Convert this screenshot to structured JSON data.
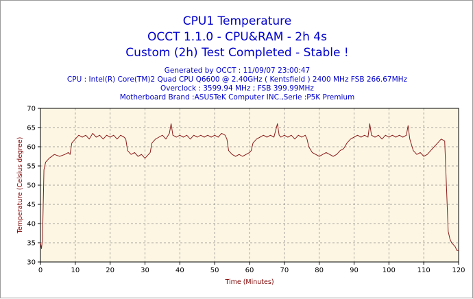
{
  "title_lines": [
    "CPU1 Temperature",
    "OCCT 1.1.0 - CPU&RAM - 2h 4s",
    "Custom (2h) Test Completed - Stable !"
  ],
  "info_lines": [
    "Generated by OCCT : 11/09/07 23:00:47",
    "CPU : Intel(R) Core(TM)2 Quad CPU    Q6600  @ 2.40GHz ( Kentsfield ) 2400 MHz FSB 266.67MHz",
    "Overclock :  3599.94 MHz ; FSB 399.99MHz",
    "Motherboard Brand :ASUSTeK Computer INC.,Serie :P5K Premium"
  ],
  "colors": {
    "title": "#0000cc",
    "axis_label": "#800000",
    "line": "#8b1a1a",
    "plot_bg": "#fdf6e3",
    "grid": "#8a8a8a"
  },
  "chart_data": {
    "type": "line",
    "title": "CPU1 Temperature",
    "xlabel": "Time (Minutes)",
    "ylabel": "Temperature (Celsius degree)",
    "xlim": [
      0,
      120
    ],
    "ylim": [
      30,
      70
    ],
    "xticks": [
      0,
      10,
      20,
      30,
      40,
      50,
      60,
      70,
      80,
      90,
      100,
      110,
      120
    ],
    "yticks": [
      30,
      35,
      40,
      45,
      50,
      55,
      60,
      65,
      70
    ],
    "grid": true,
    "series": [
      {
        "values": [
          [
            0,
            35
          ],
          [
            0.3,
            33.5
          ],
          [
            0.6,
            36
          ],
          [
            1,
            54
          ],
          [
            1.5,
            56
          ],
          [
            2.5,
            57
          ],
          [
            4,
            58
          ],
          [
            5.5,
            57.5
          ],
          [
            7,
            58
          ],
          [
            8,
            58.5
          ],
          [
            8.5,
            58
          ],
          [
            9,
            61
          ],
          [
            10,
            62
          ],
          [
            11,
            63
          ],
          [
            12,
            62.5
          ],
          [
            13,
            63
          ],
          [
            14,
            62
          ],
          [
            15,
            63.5
          ],
          [
            16,
            62.5
          ],
          [
            17,
            63
          ],
          [
            18,
            62
          ],
          [
            19,
            63
          ],
          [
            20,
            62.5
          ],
          [
            21,
            63
          ],
          [
            22,
            62
          ],
          [
            23,
            63
          ],
          [
            24,
            62.5
          ],
          [
            24.5,
            62
          ],
          [
            25,
            59
          ],
          [
            26,
            58
          ],
          [
            27,
            58.5
          ],
          [
            28,
            57.5
          ],
          [
            29,
            58
          ],
          [
            30,
            57
          ],
          [
            31,
            58
          ],
          [
            31.5,
            58.5
          ],
          [
            32,
            61
          ],
          [
            33,
            62
          ],
          [
            34,
            62.5
          ],
          [
            35,
            63
          ],
          [
            36,
            62
          ],
          [
            37,
            63.5
          ],
          [
            37.5,
            66
          ],
          [
            38,
            63
          ],
          [
            39,
            62.5
          ],
          [
            40,
            63
          ],
          [
            41,
            62.5
          ],
          [
            42,
            63
          ],
          [
            43,
            62
          ],
          [
            44,
            63
          ],
          [
            45,
            62.5
          ],
          [
            46,
            63
          ],
          [
            47,
            62.5
          ],
          [
            48,
            63
          ],
          [
            49,
            62.5
          ],
          [
            50,
            63
          ],
          [
            51,
            62.5
          ],
          [
            52,
            63.5
          ],
          [
            53,
            63
          ],
          [
            53.5,
            62
          ],
          [
            54,
            59
          ],
          [
            55,
            58
          ],
          [
            56,
            57.5
          ],
          [
            57,
            58
          ],
          [
            58,
            57.5
          ],
          [
            59,
            58
          ],
          [
            60,
            58.5
          ],
          [
            60.5,
            59
          ],
          [
            61,
            61
          ],
          [
            62,
            62
          ],
          [
            63,
            62.5
          ],
          [
            64,
            63
          ],
          [
            65,
            62.5
          ],
          [
            66,
            63
          ],
          [
            67,
            62.5
          ],
          [
            68,
            66
          ],
          [
            68.5,
            63
          ],
          [
            69,
            62.5
          ],
          [
            70,
            63
          ],
          [
            71,
            62.5
          ],
          [
            72,
            63
          ],
          [
            73,
            62
          ],
          [
            74,
            63
          ],
          [
            75,
            62.5
          ],
          [
            76,
            63
          ],
          [
            76.5,
            62
          ],
          [
            77,
            60
          ],
          [
            78,
            58.5
          ],
          [
            79,
            58
          ],
          [
            80,
            57.5
          ],
          [
            81,
            58
          ],
          [
            82,
            58.5
          ],
          [
            83,
            58
          ],
          [
            84,
            57.5
          ],
          [
            85,
            58
          ],
          [
            86,
            59
          ],
          [
            87,
            59.5
          ],
          [
            88,
            61
          ],
          [
            89,
            62
          ],
          [
            90,
            62.5
          ],
          [
            91,
            63
          ],
          [
            92,
            62.5
          ],
          [
            93,
            63
          ],
          [
            94,
            62.5
          ],
          [
            94.5,
            66
          ],
          [
            95,
            63
          ],
          [
            96,
            62.5
          ],
          [
            97,
            63
          ],
          [
            98,
            62
          ],
          [
            99,
            63
          ],
          [
            100,
            62.5
          ],
          [
            101,
            63
          ],
          [
            102,
            62.5
          ],
          [
            103,
            63
          ],
          [
            104,
            62.5
          ],
          [
            105,
            63
          ],
          [
            105.5,
            65.5
          ],
          [
            106,
            62
          ],
          [
            107,
            59
          ],
          [
            108,
            58
          ],
          [
            109,
            58.5
          ],
          [
            110,
            57.5
          ],
          [
            111,
            58
          ],
          [
            112,
            59
          ],
          [
            113,
            60
          ],
          [
            114,
            61
          ],
          [
            115,
            62
          ],
          [
            116,
            61.5
          ],
          [
            116.5,
            50
          ],
          [
            117,
            38
          ],
          [
            117.5,
            36
          ],
          [
            118,
            35
          ],
          [
            118.5,
            34.5
          ],
          [
            119,
            34
          ],
          [
            119.5,
            33
          ],
          [
            120,
            33
          ]
        ]
      }
    ]
  }
}
